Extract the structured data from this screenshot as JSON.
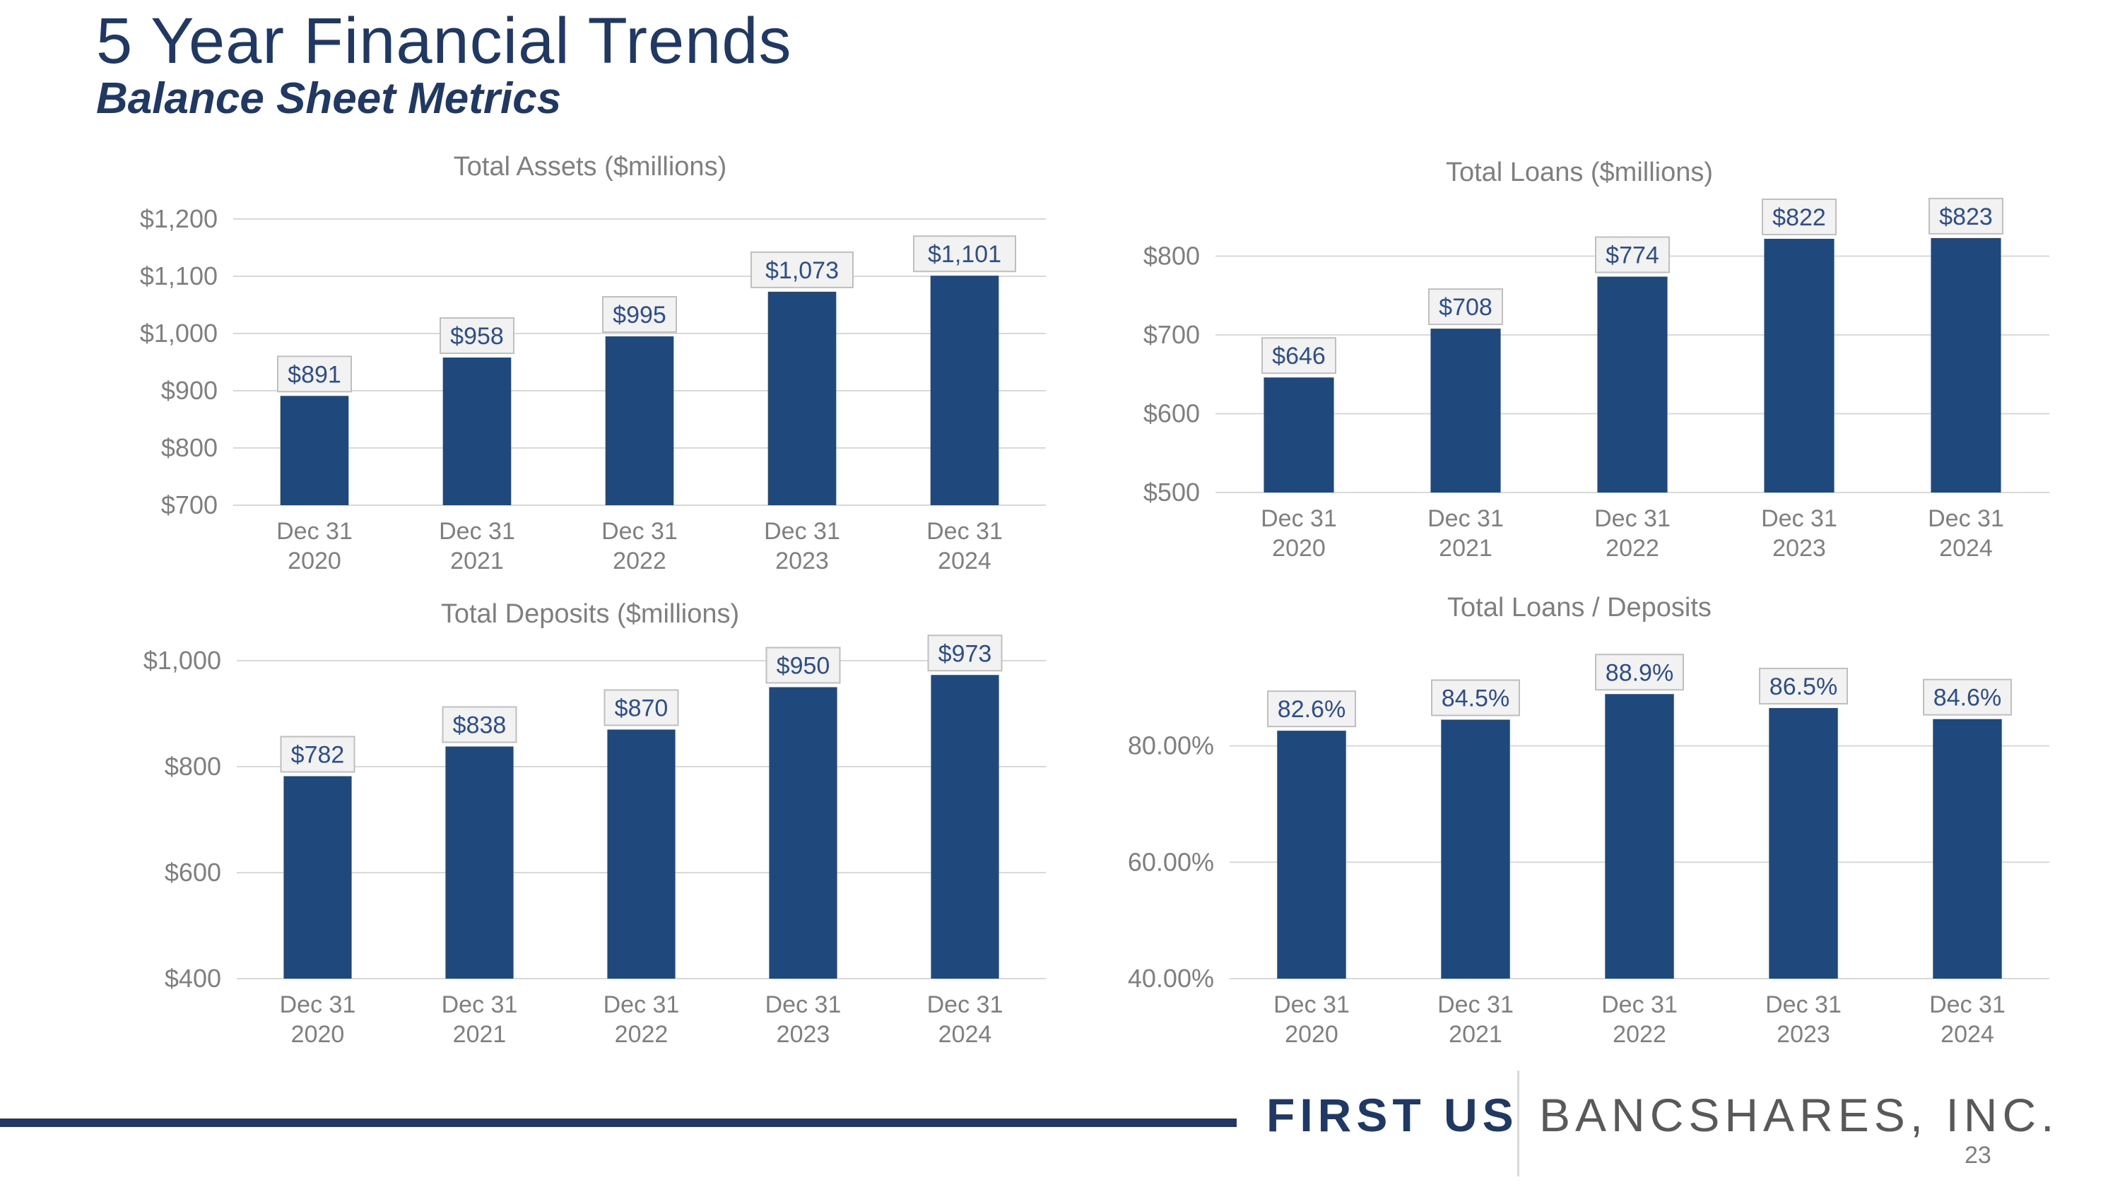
{
  "page": {
    "title": "5 Year Financial Trends",
    "subtitle": "Balance Sheet Metrics",
    "brand_first": "FIRST US",
    "brand_rest": "BANCSHARES, INC.",
    "page_number": "23"
  },
  "colors": {
    "bar": "#1f497d",
    "title": "#1f3864",
    "axis_text": "#7f7f7f",
    "data_label": "#2e4e8a"
  },
  "chart_data": [
    {
      "id": "assets",
      "type": "bar",
      "title": "Total Assets ($millions)",
      "categories": [
        "Dec 31 2020",
        "Dec 31 2021",
        "Dec 31 2022",
        "Dec 31 2023",
        "Dec 31 2024"
      ],
      "x_labels": [
        [
          "Dec 31",
          "2020"
        ],
        [
          "Dec 31",
          "2021"
        ],
        [
          "Dec 31",
          "2022"
        ],
        [
          "Dec 31",
          "2023"
        ],
        [
          "Dec 31",
          "2024"
        ]
      ],
      "values": [
        891,
        958,
        995,
        1073,
        1101
      ],
      "data_labels": [
        "$891",
        "$958",
        "$995",
        "$1,073",
        "$1,101"
      ],
      "y_ticks": [
        700,
        800,
        900,
        1000,
        1100,
        1200
      ],
      "y_tick_labels": [
        "$700",
        "$800",
        "$900",
        "$1,000",
        "$1,100",
        "$1,200"
      ],
      "ylim": [
        700,
        1200
      ],
      "grid": true
    },
    {
      "id": "loans",
      "type": "bar",
      "title": "Total Loans ($millions)",
      "categories": [
        "Dec 31 2020",
        "Dec 31 2021",
        "Dec 31 2022",
        "Dec 31 2023",
        "Dec 31 2024"
      ],
      "x_labels": [
        [
          "Dec 31",
          "2020"
        ],
        [
          "Dec 31",
          "2021"
        ],
        [
          "Dec 31",
          "2022"
        ],
        [
          "Dec 31",
          "2023"
        ],
        [
          "Dec 31",
          "2024"
        ]
      ],
      "values": [
        646,
        708,
        774,
        822,
        823
      ],
      "data_labels": [
        "$646",
        "$708",
        "$774",
        "$822",
        "$823"
      ],
      "y_ticks": [
        500,
        600,
        700,
        800
      ],
      "y_tick_labels": [
        "$500",
        "$600",
        "$700",
        "$800"
      ],
      "ylim": [
        500,
        822
      ],
      "grid": true
    },
    {
      "id": "deposits",
      "type": "bar",
      "title": "Total Deposits ($millions)",
      "categories": [
        "Dec 31 2020",
        "Dec 31 2021",
        "Dec 31 2022",
        "Dec 31 2023",
        "Dec 31 2024"
      ],
      "x_labels": [
        [
          "Dec 31",
          "2020"
        ],
        [
          "Dec 31",
          "2021"
        ],
        [
          "Dec 31",
          "2022"
        ],
        [
          "Dec 31",
          "2023"
        ],
        [
          "Dec 31",
          "2024"
        ]
      ],
      "values": [
        782,
        838,
        870,
        950,
        973
      ],
      "data_labels": [
        "$782",
        "$838",
        "$870",
        "$950",
        "$973"
      ],
      "y_ticks": [
        400,
        600,
        800,
        1000
      ],
      "y_tick_labels": [
        "$400",
        "$600",
        "$800",
        "$1,000"
      ],
      "ylim": [
        400,
        1000
      ],
      "grid": true
    },
    {
      "id": "ratio",
      "type": "bar",
      "title": "Total Loans / Deposits",
      "categories": [
        "Dec 31 2020",
        "Dec 31 2021",
        "Dec 31 2022",
        "Dec 31 2023",
        "Dec 31 2024"
      ],
      "x_labels": [
        [
          "Dec 31",
          "2020"
        ],
        [
          "Dec 31",
          "2021"
        ],
        [
          "Dec 31",
          "2022"
        ],
        [
          "Dec 31",
          "2023"
        ],
        [
          "Dec 31",
          "2024"
        ]
      ],
      "values": [
        82.6,
        84.5,
        88.9,
        86.5,
        84.6
      ],
      "data_labels": [
        "82.6%",
        "84.5%",
        "88.9%",
        "86.5%",
        "84.6%"
      ],
      "y_ticks": [
        40,
        60,
        80
      ],
      "y_tick_labels": [
        "40.00%",
        "60.00%",
        "80.00%"
      ],
      "ylim": [
        40,
        91
      ],
      "grid": true
    }
  ]
}
